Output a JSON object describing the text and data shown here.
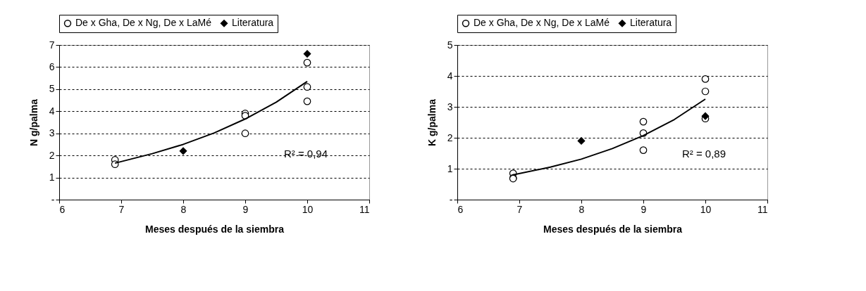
{
  "chart_data": [
    {
      "type": "scatter",
      "xlabel": "Meses después de la siembra",
      "ylabel": "N g/palma",
      "xlim": [
        6,
        11
      ],
      "xticks": [
        6,
        7,
        8,
        9,
        10,
        11
      ],
      "ylim": [
        0,
        7
      ],
      "yticks": [
        {
          "value": 0,
          "label": "-"
        },
        1,
        2,
        3,
        4,
        5,
        6,
        7
      ],
      "grid": "y",
      "legend": "top",
      "series": [
        {
          "name": "De x Gha, De x Ng, De x LaMé",
          "color": "#000000",
          "marker": "circle",
          "x": [
            6.9,
            6.9,
            9,
            9,
            9,
            10,
            10,
            10
          ],
          "values": [
            1.8,
            1.6,
            3.9,
            3.8,
            3.0,
            6.2,
            5.1,
            4.45
          ]
        },
        {
          "name": "Literatura",
          "color": "#000000",
          "marker": "diamond",
          "x": [
            8,
            10
          ],
          "values": [
            2.2,
            6.6
          ]
        },
        {
          "type": "line",
          "color": "#000000",
          "marker": "none",
          "line_style": "solid",
          "x": [
            6.9,
            7.5,
            8,
            8.5,
            9,
            9.5,
            10
          ],
          "values": [
            1.65,
            2.08,
            2.5,
            3.02,
            3.65,
            4.41,
            5.35
          ]
        }
      ],
      "annotations": [
        "R² = 0,94"
      ]
    },
    {
      "type": "scatter",
      "xlabel": "Meses después de la siembra",
      "ylabel": "K g/palma",
      "xlim": [
        6,
        11
      ],
      "xticks": [
        6,
        7,
        8,
        9,
        10,
        11
      ],
      "ylim": [
        0,
        5
      ],
      "yticks": [
        {
          "value": 0,
          "label": "-"
        },
        1,
        2,
        3,
        4,
        5
      ],
      "grid": "y",
      "legend": "top",
      "series": [
        {
          "name": "De x Gha, De x Ng, De x LaMé",
          "color": "#000000",
          "marker": "circle",
          "x": [
            6.9,
            6.9,
            6.9,
            9,
            9,
            9,
            10,
            10,
            10
          ],
          "values": [
            0.85,
            0.7,
            0.68,
            2.52,
            2.15,
            1.6,
            3.9,
            3.5,
            2.62
          ]
        },
        {
          "name": "Literatura",
          "color": "#000000",
          "marker": "diamond",
          "x": [
            8,
            10
          ],
          "values": [
            1.9,
            2.7
          ]
        },
        {
          "type": "line",
          "color": "#000000",
          "marker": "none",
          "line_style": "solid",
          "x": [
            6.9,
            7.5,
            8,
            8.5,
            9,
            9.5,
            10
          ],
          "values": [
            0.8,
            1.05,
            1.31,
            1.65,
            2.07,
            2.59,
            3.25
          ]
        }
      ],
      "annotations": [
        "R² = 0,89"
      ]
    }
  ]
}
